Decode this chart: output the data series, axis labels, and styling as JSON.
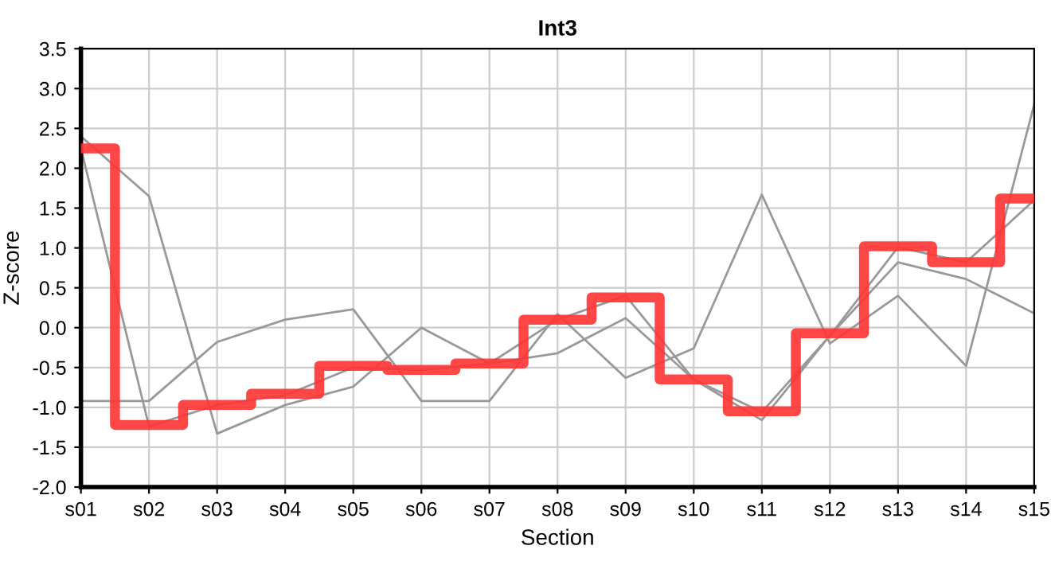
{
  "chart_data": {
    "type": "line",
    "title": "Int3",
    "xlabel": "Section",
    "ylabel": "Z-score",
    "categories": [
      "s01",
      "s02",
      "s03",
      "s04",
      "s05",
      "s06",
      "s07",
      "s08",
      "s09",
      "s10",
      "s11",
      "s12",
      "s13",
      "s14",
      "s15"
    ],
    "series": [
      {
        "color": "#999999",
        "values": [
          2.4,
          1.65,
          -1.33,
          -0.97,
          -0.74,
          0.0,
          -0.45,
          -0.32,
          0.12,
          -0.65,
          -1.16,
          -0.1,
          0.82,
          0.61,
          0.18
        ]
      },
      {
        "color": "#999999",
        "values": [
          -0.92,
          -0.92,
          -0.18,
          0.1,
          0.23,
          -0.92,
          -0.92,
          0.17,
          -0.63,
          -0.26,
          1.67,
          -0.2,
          0.4,
          -0.48,
          2.8
        ]
      },
      {
        "color": "#999999",
        "values": [
          2.25,
          -1.24,
          -0.97,
          -0.85,
          -0.5,
          -0.53,
          -0.45,
          0.1,
          0.4,
          -0.65,
          -1.06,
          -0.1,
          1.01,
          0.82,
          1.6
        ]
      },
      {
        "type": "step",
        "color": "#ff3333",
        "values": [
          2.25,
          -1.22,
          -0.97,
          -0.83,
          -0.48,
          -0.53,
          -0.45,
          0.1,
          0.38,
          -0.65,
          -1.05,
          -0.07,
          1.02,
          0.82,
          1.62
        ]
      }
    ],
    "ylim": [
      -2.0,
      3.5
    ],
    "yticks": [
      {
        "value": -2.0,
        "label": "-2.0"
      },
      {
        "value": -1.5,
        "label": "-1.5"
      },
      {
        "value": -1.0,
        "label": "-1.0"
      },
      {
        "value": -0.5,
        "label": "-0.5"
      },
      {
        "value": 0.0,
        "label": "0.0"
      },
      {
        "value": 0.5,
        "label": "0.5"
      },
      {
        "value": 1.0,
        "label": "1.0"
      },
      {
        "value": 1.5,
        "label": "1.5"
      },
      {
        "value": 2.0,
        "label": "2.0"
      },
      {
        "value": 2.5,
        "label": "2.5"
      },
      {
        "value": 3.0,
        "label": "3.0"
      },
      {
        "value": 3.5,
        "label": "3.5"
      }
    ],
    "grid": true
  }
}
